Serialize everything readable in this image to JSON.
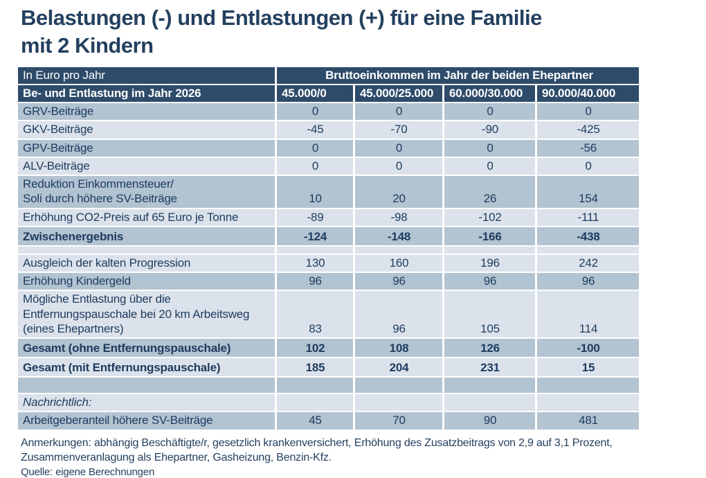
{
  "title_display": "Belastungen (-) und Entlastungen (+) für eine Familie\nmit 2 Kindern",
  "chart_data": {
    "type": "table",
    "title": "Belastungen (-) und Entlastungen (+) für eine Familie mit 2 Kindern",
    "unit_label": "In Euro pro Jahr",
    "group_header": "Bruttoeinkommen im Jahr der beiden Ehepartner",
    "row_dimension_label": "Be- und Entlastung im Jahr 2026",
    "columns": [
      "45.000/0",
      "45.000/25.000",
      "60.000/30.000",
      "90.000/40.000"
    ],
    "rows": [
      {
        "label": "GRV-Beiträge",
        "values": [
          "0",
          "0",
          "0",
          "0"
        ],
        "shade": "dark"
      },
      {
        "label": "GKV-Beiträge",
        "values": [
          "-45",
          "-70",
          "-90",
          "-425"
        ],
        "shade": "light"
      },
      {
        "label": "GPV-Beiträge",
        "values": [
          "0",
          "0",
          "0",
          "-56"
        ],
        "shade": "dark"
      },
      {
        "label": "ALV-Beiträge",
        "values": [
          "0",
          "0",
          "0",
          "0"
        ],
        "shade": "light"
      },
      {
        "label": "Reduktion Einkommensteuer/\nSoli durch höhere SV-Beiträge",
        "values": [
          "10",
          "20",
          "26",
          "154"
        ],
        "shade": "dark"
      },
      {
        "label": "Erhöhung CO2-Preis auf 65 Euro je Tonne",
        "values": [
          "-89",
          "-98",
          "-102",
          "-111"
        ],
        "shade": "light"
      },
      {
        "label": "Zwischenergebnis",
        "values": [
          "-124",
          "-148",
          "-166",
          "-438"
        ],
        "shade": "dark",
        "bold": true,
        "sum": true
      },
      {
        "type": "spacer",
        "shade": "light"
      },
      {
        "label": "Ausgleich der kalten Progression",
        "values": [
          "130",
          "160",
          "196",
          "242"
        ],
        "shade": "light"
      },
      {
        "label": "Erhöhung Kindergeld",
        "values": [
          "96",
          "96",
          "96",
          "96"
        ],
        "shade": "dark"
      },
      {
        "label": "Mögliche Entlastung über die\nEntfernungspauschale bei 20 km Arbeitsweg\n(eines Ehepartners)",
        "values": [
          "83",
          "96",
          "105",
          "114"
        ],
        "shade": "light"
      },
      {
        "label": "Gesamt (ohne Entfernungspauschale)",
        "values": [
          "102",
          "108",
          "126",
          "-100"
        ],
        "shade": "dark",
        "bold": true,
        "sum": true
      },
      {
        "label": "Gesamt (mit Entfernungspauschale)",
        "values": [
          "185",
          "204",
          "231",
          "15"
        ],
        "shade": "light",
        "bold": true,
        "sum": true
      },
      {
        "type": "empty",
        "shade": "dark"
      },
      {
        "label": "Nachrichtlich:",
        "values": [
          "",
          "",
          "",
          ""
        ],
        "shade": "light",
        "italic": true,
        "note": true
      },
      {
        "label": "Arbeitgeberanteil höhere SV-Beiträge",
        "values": [
          "45",
          "70",
          "90",
          "481"
        ],
        "shade": "dark"
      }
    ],
    "annotations": "Anmerkungen: abhängig Beschäftigte/r, gesetzlich krankenversichert, Erhöhung des Zusatzbeitrags von 2,9 auf 3,1 Prozent,\nZusammenveranlagung als Ehepartner, Gasheizung, Benzin-Kfz.",
    "source": "Quelle: eigene Berechnungen"
  },
  "colors": {
    "header_bg": "#2e4b6a",
    "row_dark": "#b2c3d1",
    "row_light": "#dce2eb",
    "text": "#1d3b5e",
    "title": "#24405f"
  }
}
